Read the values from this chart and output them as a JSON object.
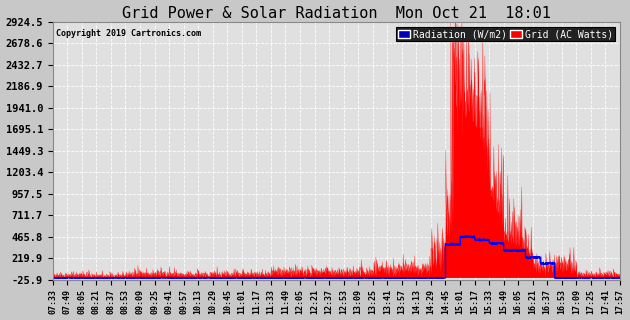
{
  "title": "Grid Power & Solar Radiation  Mon Oct 21  18:01",
  "copyright": "Copyright 2019 Cartronics.com",
  "legend_radiation": "Radiation (W/m2)",
  "legend_grid": "Grid (AC Watts)",
  "yticks": [
    2924.5,
    2678.6,
    2432.7,
    2186.9,
    1941.0,
    1695.1,
    1449.3,
    1203.4,
    957.5,
    711.7,
    465.8,
    219.9,
    -25.9
  ],
  "ymin": -25.9,
  "ymax": 2924.5,
  "bg_color": "#c8c8c8",
  "plot_bg_color": "#e0e0e0",
  "grid_color": "#ffffff",
  "radiation_color": "#0000ff",
  "grid_power_color": "#ff0000",
  "title_fontsize": 11,
  "xtick_labels": [
    "07:33",
    "07:49",
    "08:05",
    "08:21",
    "08:37",
    "08:53",
    "09:09",
    "09:25",
    "09:41",
    "09:57",
    "10:13",
    "10:29",
    "10:45",
    "11:01",
    "11:17",
    "11:33",
    "11:49",
    "12:05",
    "12:21",
    "12:37",
    "12:53",
    "13:09",
    "13:25",
    "13:41",
    "13:57",
    "14:13",
    "14:29",
    "14:45",
    "15:01",
    "15:17",
    "15:33",
    "15:49",
    "16:05",
    "16:21",
    "16:37",
    "16:53",
    "17:09",
    "17:25",
    "17:41",
    "17:57"
  ]
}
